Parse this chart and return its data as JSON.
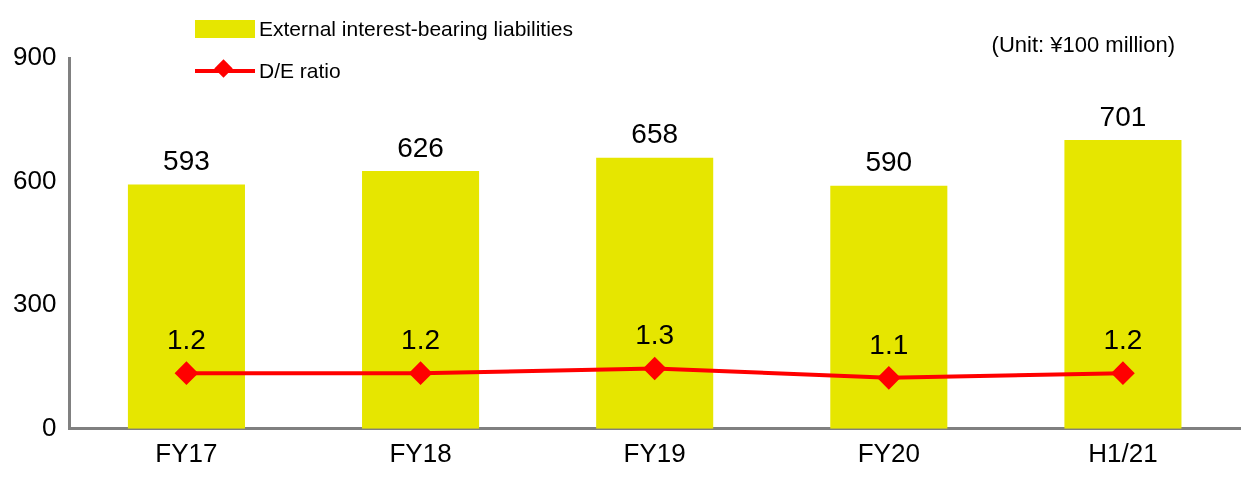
{
  "chart_data": {
    "type": "bar",
    "categories": [
      "FY17",
      "FY18",
      "FY19",
      "FY20",
      "H1/21"
    ],
    "series": [
      {
        "name": "External interest-bearing liabilities",
        "color": "#e6e600",
        "values": [
          593,
          626,
          658,
          590,
          701
        ]
      },
      {
        "name": "D/E ratio",
        "type": "line",
        "color": "#ff0000",
        "axis": "y2",
        "marker": "diamond",
        "values": [
          1.2,
          1.2,
          1.3,
          1.1,
          1.2
        ]
      }
    ],
    "ylim": [
      0,
      900
    ],
    "yticks": [
      0,
      300,
      600,
      900
    ],
    "y2lim": [
      0,
      8
    ],
    "data_labels": true,
    "grid": false,
    "legend": "top left",
    "annotations": [
      "(Unit: ¥100 million)"
    ]
  }
}
